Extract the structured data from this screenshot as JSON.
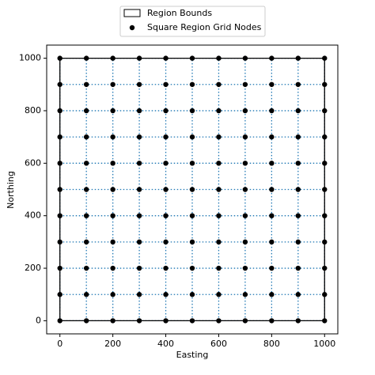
{
  "chart_data": {
    "type": "scatter",
    "xlabel": "Easting",
    "ylabel": "Northing",
    "xlim": [
      -50,
      1050
    ],
    "ylim": [
      -50,
      1050
    ],
    "xticks": [
      0,
      200,
      400,
      600,
      800,
      1000
    ],
    "yticks": [
      0,
      200,
      400,
      600,
      800,
      1000
    ],
    "legend": "upper center outside",
    "grid_lines": {
      "color": "#1f77b4",
      "style": "dotted"
    },
    "region": {
      "name": "Region Bounds",
      "color": "#000000",
      "x": [
        0,
        1000,
        1000,
        0,
        0
      ],
      "y": [
        0,
        0,
        1000,
        1000,
        0
      ]
    },
    "series": [
      {
        "name": "Square Region Grid Nodes",
        "color": "#000000",
        "x": [
          0,
          100,
          200,
          300,
          400,
          500,
          600,
          700,
          800,
          900,
          1000,
          0,
          100,
          200,
          300,
          400,
          500,
          600,
          700,
          800,
          900,
          1000,
          0,
          100,
          200,
          300,
          400,
          500,
          600,
          700,
          800,
          900,
          1000,
          0,
          100,
          200,
          300,
          400,
          500,
          600,
          700,
          800,
          900,
          1000,
          0,
          100,
          200,
          300,
          400,
          500,
          600,
          700,
          800,
          900,
          1000,
          0,
          100,
          200,
          300,
          400,
          500,
          600,
          700,
          800,
          900,
          1000,
          0,
          100,
          200,
          300,
          400,
          500,
          600,
          700,
          800,
          900,
          1000,
          0,
          100,
          200,
          300,
          400,
          500,
          600,
          700,
          800,
          900,
          1000,
          0,
          100,
          200,
          300,
          400,
          500,
          600,
          700,
          800,
          900,
          1000,
          0,
          100,
          200,
          300,
          400,
          500,
          600,
          700,
          800,
          900,
          1000,
          0,
          100,
          200,
          300,
          400,
          500,
          600,
          700,
          800,
          900,
          1000
        ],
        "values": [
          0,
          0,
          0,
          0,
          0,
          0,
          0,
          0,
          0,
          0,
          0,
          100,
          100,
          100,
          100,
          100,
          100,
          100,
          100,
          100,
          100,
          100,
          200,
          200,
          200,
          200,
          200,
          200,
          200,
          200,
          200,
          200,
          200,
          300,
          300,
          300,
          300,
          300,
          300,
          300,
          300,
          300,
          300,
          300,
          400,
          400,
          400,
          400,
          400,
          400,
          400,
          400,
          400,
          400,
          400,
          500,
          500,
          500,
          500,
          500,
          500,
          500,
          500,
          500,
          500,
          500,
          600,
          600,
          600,
          600,
          600,
          600,
          600,
          600,
          600,
          600,
          600,
          700,
          700,
          700,
          700,
          700,
          700,
          700,
          700,
          700,
          700,
          700,
          800,
          800,
          800,
          800,
          800,
          800,
          800,
          800,
          800,
          800,
          800,
          900,
          900,
          900,
          900,
          900,
          900,
          900,
          900,
          900,
          900,
          900,
          1000,
          1000,
          1000,
          1000,
          1000,
          1000,
          1000,
          1000,
          1000,
          1000,
          1000
        ]
      }
    ]
  }
}
